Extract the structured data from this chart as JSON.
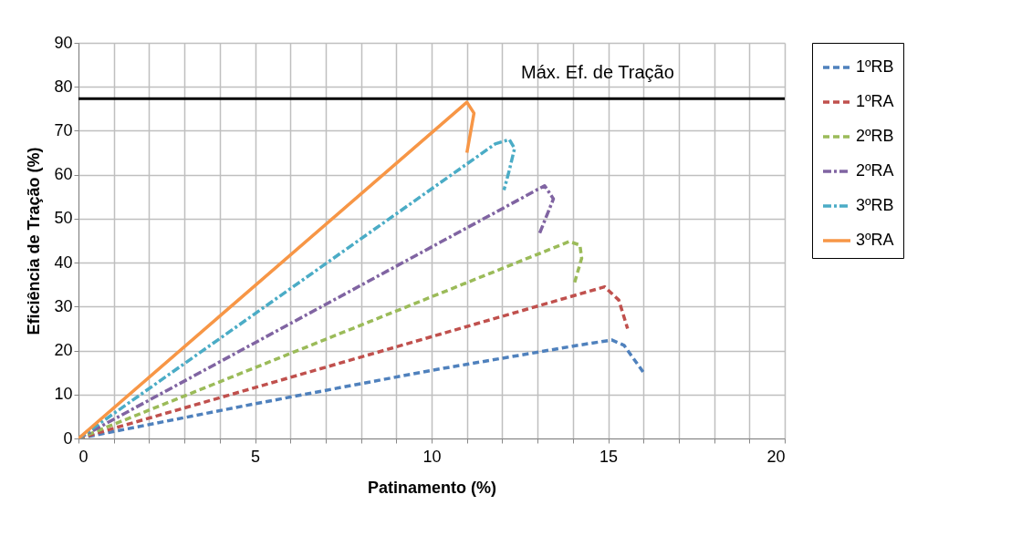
{
  "chart_data": {
    "type": "line",
    "xlabel": "Patinamento (%)",
    "ylabel": "Eficiência de Tração (%)",
    "xlim": [
      0,
      20
    ],
    "ylim": [
      0,
      90
    ],
    "xticks": [
      0,
      {
        "value": 1,
        "label": null
      },
      {
        "value": 2,
        "label": null
      },
      {
        "value": 3,
        "label": null
      },
      {
        "value": 4,
        "label": null
      },
      5,
      {
        "value": 6,
        "label": null
      },
      {
        "value": 7,
        "label": null
      },
      {
        "value": 8,
        "label": null
      },
      {
        "value": 9,
        "label": null
      },
      10,
      {
        "value": 11,
        "label": null
      },
      {
        "value": 12,
        "label": null
      },
      {
        "value": 13,
        "label": null
      },
      {
        "value": 14,
        "label": null
      },
      15,
      {
        "value": 16,
        "label": null
      },
      {
        "value": 17,
        "label": null
      },
      {
        "value": 18,
        "label": null
      },
      {
        "value": 19,
        "label": null
      },
      20
    ],
    "yticks": [
      0,
      10,
      20,
      30,
      40,
      50,
      60,
      70,
      80,
      90
    ],
    "grid": true,
    "legend": "right",
    "marker": "none",
    "ref_lines": [
      {
        "axis": "y",
        "value": 77.3,
        "label": "Máx. Ef. de Tração",
        "color": "#000000"
      }
    ],
    "series": [
      {
        "name": "1ºRB",
        "color": "#4f81bd",
        "line_style": "dashed",
        "x": [
          0,
          5,
          10,
          14,
          15.1,
          15.45,
          16.0
        ],
        "values": [
          0,
          7.9,
          15.5,
          21,
          22.4,
          21.2,
          15
        ]
      },
      {
        "name": "1ºRA",
        "color": "#c0504d",
        "line_style": "dashed",
        "x": [
          0,
          14.9,
          15.3,
          15.55
        ],
        "values": [
          0,
          34.5,
          31.5,
          25
        ]
      },
      {
        "name": "2ºRB",
        "color": "#9bbb59",
        "line_style": "dashed",
        "x": [
          0,
          13.9,
          14.2,
          14.25,
          14.05
        ],
        "values": [
          0,
          44.8,
          44,
          41,
          35.5
        ]
      },
      {
        "name": "2ºRA",
        "color": "#8064a2",
        "line_style": "dashdot",
        "x": [
          0,
          13.2,
          13.45,
          13.05
        ],
        "values": [
          0,
          57.5,
          54.5,
          46.5
        ]
      },
      {
        "name": "3ºRB",
        "color": "#4bacc6",
        "line_style": "dashdot",
        "x": [
          0,
          11.8,
          12.2,
          12.35,
          12.2,
          12.05
        ],
        "values": [
          0,
          67,
          68,
          66,
          61,
          56.5
        ]
      },
      {
        "name": "3ºRA",
        "color": "#f79646",
        "line_style": "solid",
        "x": [
          0,
          11.0,
          11.2,
          11.0
        ],
        "values": [
          0,
          76.5,
          74,
          65
        ]
      }
    ]
  }
}
